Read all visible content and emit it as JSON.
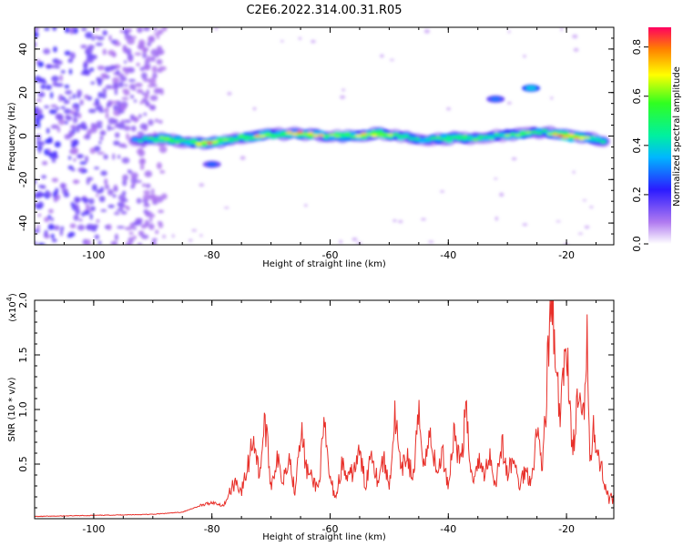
{
  "title": "C2E6.2022.314.00.31.R05",
  "chart_data": [
    {
      "type": "heatmap",
      "xlabel": "Height of straight line (km)",
      "ylabel": "Frequency (Hz)",
      "xlim": [
        -110,
        -12
      ],
      "ylim": [
        -50,
        50
      ],
      "xticks": [
        -100,
        -80,
        -60,
        -40,
        -20
      ],
      "yticks": [
        -40,
        -20,
        0,
        20,
        40
      ],
      "colorbar": {
        "label": "Normalized spectral amplitude",
        "range": [
          0,
          0.88
        ],
        "ticks": [
          0.0,
          0.2,
          0.4,
          0.6,
          0.8
        ]
      },
      "ridge": {
        "x": [
          -93,
          -88,
          -84,
          -80,
          -76,
          -72,
          -68,
          -64,
          -60,
          -56,
          -52,
          -48,
          -44,
          -40,
          -36,
          -32,
          -28,
          -24,
          -20,
          -16,
          -13
        ],
        "freq": [
          -2,
          -1,
          -3,
          -3,
          -1,
          0,
          1,
          1,
          0,
          0,
          1,
          0,
          -2,
          -1,
          -1,
          0,
          1,
          2,
          0,
          -1,
          -3
        ],
        "amplitude": [
          0.35,
          0.7,
          0.5,
          0.85,
          0.5,
          0.75,
          0.6,
          0.8,
          0.6,
          0.65,
          0.7,
          0.55,
          0.45,
          0.6,
          0.55,
          0.5,
          0.65,
          0.5,
          0.88,
          0.6,
          0.5
        ]
      },
      "features": [
        {
          "x": -32,
          "freq": 17,
          "amplitude": 0.12
        },
        {
          "x": -26,
          "freq": 22,
          "amplitude": 0.2
        },
        {
          "x": -80,
          "freq": -13,
          "amplitude": 0.1
        }
      ]
    },
    {
      "type": "line",
      "xlabel": "Height of straight line (km)",
      "ylabel": "SNR (10 * v/v)",
      "yscale_label": "(x10",
      "yscale_exp": "4",
      "yscale_close": ")",
      "xlim": [
        -110,
        -12
      ],
      "ylim": [
        0,
        2.0
      ],
      "xticks": [
        -100,
        -80,
        -60,
        -40,
        -20
      ],
      "yticks": [
        0.5,
        1.0,
        1.5,
        2.0
      ],
      "ytick_labels": [
        "0.5",
        "1.0",
        "1.5",
        "2.0"
      ],
      "color": "#e8302a",
      "series": [
        {
          "x": [
            -110,
            -100,
            -90,
            -85,
            -83,
            -80,
            -78,
            -76,
            -75,
            -74,
            -73,
            -72,
            -71,
            -70,
            -69,
            -68,
            -67,
            -66,
            -65,
            -64,
            -63,
            -62,
            -61,
            -60,
            -59,
            -58,
            -57,
            -56,
            -55,
            -54,
            -53,
            -52,
            -51,
            -50,
            -49,
            -48,
            -47,
            -46,
            -45,
            -44,
            -43,
            -42,
            -41,
            -40,
            -39,
            -38,
            -37,
            -36,
            -35,
            -34,
            -33,
            -32,
            -31,
            -30,
            -29,
            -28,
            -27,
            -26,
            -25,
            -24,
            -23,
            -22.3,
            -22,
            -21,
            -20,
            -19,
            -18,
            -17,
            -16.5,
            -16,
            -15.5,
            -15,
            -14,
            -13,
            -12
          ],
          "y": [
            0.02,
            0.03,
            0.04,
            0.06,
            0.1,
            0.15,
            0.12,
            0.35,
            0.25,
            0.45,
            0.78,
            0.4,
            0.9,
            0.3,
            0.55,
            0.35,
            0.6,
            0.25,
            0.85,
            0.45,
            0.35,
            0.28,
            0.82,
            0.35,
            0.2,
            0.5,
            0.35,
            0.45,
            0.6,
            0.3,
            0.65,
            0.35,
            0.55,
            0.3,
            0.95,
            0.4,
            0.6,
            0.35,
            0.92,
            0.5,
            0.8,
            0.4,
            0.6,
            0.3,
            0.82,
            0.5,
            0.95,
            0.35,
            0.55,
            0.4,
            0.6,
            0.3,
            0.7,
            0.4,
            0.55,
            0.3,
            0.45,
            0.35,
            0.8,
            0.5,
            1.6,
            2.0,
            1.4,
            0.9,
            1.7,
            0.6,
            1.1,
            0.85,
            1.8,
            0.5,
            0.95,
            0.6,
            0.45,
            0.2,
            0.15
          ]
        }
      ]
    }
  ]
}
